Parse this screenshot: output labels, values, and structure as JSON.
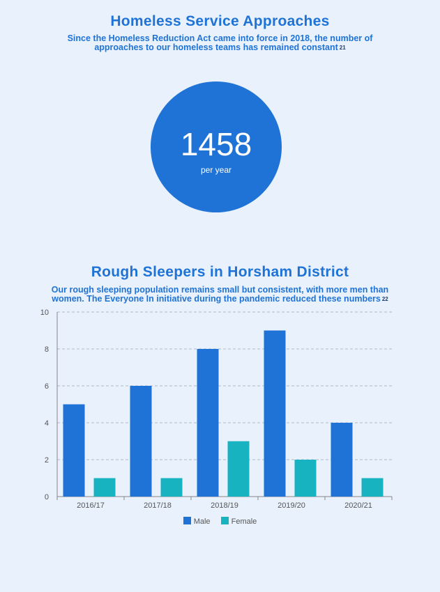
{
  "section1": {
    "title": "Homeless Service Approaches",
    "subtitle_line1": "Since the Homeless Reduction Act came into force in 2018, the number of",
    "subtitle_line2": "approaches to our homeless teams has remained constant",
    "footnote": "21",
    "stat_value": "1458",
    "stat_unit": "per year"
  },
  "section2": {
    "title": "Rough Sleepers in Horsham District",
    "subtitle_line1": "Our rough sleeping population remains small but consistent, with more men than",
    "subtitle_line2": "women. The Everyone In initiative during the pandemic reduced these numbers",
    "footnote": "22"
  },
  "colors": {
    "male": "#1f73d6",
    "female": "#17b3c1",
    "accent": "#1f73d6",
    "background": "#e8f1fc"
  },
  "chart_data": {
    "type": "bar",
    "categories": [
      "2016/17",
      "2017/18",
      "2018/19",
      "2019/20",
      "2020/21"
    ],
    "series": [
      {
        "name": "Male",
        "values": [
          5,
          6,
          8,
          9,
          4
        ]
      },
      {
        "name": "Female",
        "values": [
          1,
          1,
          3,
          2,
          1
        ]
      }
    ],
    "ylim": [
      0,
      10
    ],
    "yticks": [
      0,
      2,
      4,
      6,
      8,
      10
    ],
    "grid": true,
    "legend": "bottom-center"
  }
}
